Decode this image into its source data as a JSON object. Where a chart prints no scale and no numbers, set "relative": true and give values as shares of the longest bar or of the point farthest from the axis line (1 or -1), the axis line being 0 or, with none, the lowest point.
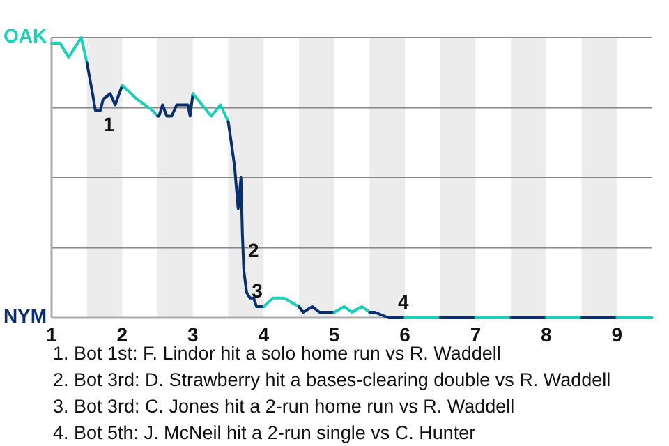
{
  "chart_data": {
    "type": "line",
    "relative": true,
    "xlim": [
      1,
      9.5
    ],
    "xticks": [
      1,
      2,
      3,
      4,
      5,
      6,
      7,
      8,
      9
    ],
    "grid": "y",
    "line_style": "solid",
    "bands": [
      {
        "axis": "x",
        "from": 1.5,
        "to": 2,
        "color": "#ececec"
      },
      {
        "axis": "x",
        "from": 2.5,
        "to": 3,
        "color": "#ececec"
      },
      {
        "axis": "x",
        "from": 3.5,
        "to": 4,
        "color": "#ececec"
      },
      {
        "axis": "x",
        "from": 4.5,
        "to": 5,
        "color": "#ececec"
      },
      {
        "axis": "x",
        "from": 5.5,
        "to": 6,
        "color": "#ececec"
      },
      {
        "axis": "x",
        "from": 6.5,
        "to": 7,
        "color": "#ececec"
      },
      {
        "axis": "x",
        "from": 7.5,
        "to": 8,
        "color": "#ececec"
      },
      {
        "axis": "x",
        "from": 8.5,
        "to": 9,
        "color": "#ececec"
      }
    ],
    "series": [
      {
        "color": "#1ad0b8",
        "x": [
          1,
          1.12,
          1.24,
          1.42,
          1.5
        ],
        "values": [
          0.98,
          0.98,
          0.93,
          1,
          0.91
        ]
      },
      {
        "color": "#0a2f6e",
        "x": [
          1.5,
          1.58,
          1.62,
          1.69,
          1.73,
          1.83,
          1.9,
          2
        ],
        "values": [
          0.91,
          0.8,
          0.74,
          0.74,
          0.78,
          0.8,
          0.76,
          0.83
        ]
      },
      {
        "color": "#1ad0b8",
        "x": [
          2,
          2.21,
          2.43,
          2.5
        ],
        "values": [
          0.83,
          0.78,
          0.74,
          0.72
        ]
      },
      {
        "color": "#0a2f6e",
        "x": [
          2.5,
          2.52,
          2.57,
          2.63,
          2.7,
          2.77,
          2.84,
          2.93,
          2.96,
          3
        ],
        "values": [
          0.72,
          0.72,
          0.76,
          0.72,
          0.72,
          0.76,
          0.76,
          0.76,
          0.72,
          0.8
        ]
      },
      {
        "color": "#1ad0b8",
        "x": [
          3,
          3.13,
          3.26,
          3.39,
          3.5
        ],
        "values": [
          0.8,
          0.76,
          0.72,
          0.76,
          0.7
        ]
      },
      {
        "color": "#0a2f6e",
        "x": [
          3.5,
          3.54,
          3.59,
          3.64,
          3.68,
          3.7,
          3.72,
          3.76,
          3.81,
          3.86,
          3.9,
          3.97,
          4
        ],
        "values": [
          0.7,
          0.63,
          0.54,
          0.39,
          0.5,
          0.3,
          0.17,
          0.09,
          0.07,
          0.07,
          0.04,
          0.04,
          0.04
        ]
      },
      {
        "color": "#1ad0b8",
        "x": [
          4,
          4.13,
          4.29,
          4.5
        ],
        "values": [
          0.04,
          0.07,
          0.07,
          0.04
        ]
      },
      {
        "color": "#0a2f6e",
        "x": [
          4.5,
          4.56,
          4.69,
          4.79,
          4.98,
          5
        ],
        "values": [
          0.04,
          0.02,
          0.04,
          0.02,
          0.02,
          0.02
        ]
      },
      {
        "color": "#1ad0b8",
        "x": [
          5,
          5.14,
          5.25,
          5.39,
          5.5
        ],
        "values": [
          0.02,
          0.04,
          0.02,
          0.04,
          0.02
        ]
      },
      {
        "color": "#0a2f6e",
        "x": [
          5.5,
          5.57,
          5.77,
          6
        ],
        "values": [
          0.02,
          0.02,
          0,
          0
        ]
      },
      {
        "color": "#1ad0b8",
        "x": [
          6,
          6.5
        ],
        "values": [
          0,
          0
        ]
      },
      {
        "color": "#0a2f6e",
        "x": [
          6.5,
          7
        ],
        "values": [
          0,
          0
        ]
      },
      {
        "color": "#1ad0b8",
        "x": [
          7,
          7.5
        ],
        "values": [
          0,
          0
        ]
      },
      {
        "color": "#0a2f6e",
        "x": [
          7.5,
          8
        ],
        "values": [
          0,
          0
        ]
      },
      {
        "color": "#1ad0b8",
        "x": [
          8,
          8.5
        ],
        "values": [
          0,
          0
        ]
      },
      {
        "color": "#0a2f6e",
        "x": [
          8.5,
          9
        ],
        "values": [
          0,
          0
        ]
      },
      {
        "color": "#1ad0b8",
        "x": [
          9,
          9.5
        ],
        "values": [
          0,
          0
        ]
      }
    ],
    "annotations": [
      "OAK",
      "NYM",
      {
        "text": "1",
        "x": 1.69,
        "y": 0.72
      },
      {
        "text": "2",
        "x": 3.74,
        "y": 0.27
      },
      {
        "text": "3",
        "x": 3.79,
        "y": 0.04
      },
      {
        "text": "4",
        "x": 5.86,
        "y": 0
      },
      "1. Bot 1st: F. Lindor hit a solo home run vs R. Waddell",
      "2. Bot 3rd: D. Strawberry hit a bases-clearing double vs R. Waddell",
      "3. Bot 3rd: C. Jones hit a 2-run home run vs R. Waddell",
      "4. Bot 5th: J. McNeil hit a 2-run single vs C. Hunter"
    ]
  }
}
